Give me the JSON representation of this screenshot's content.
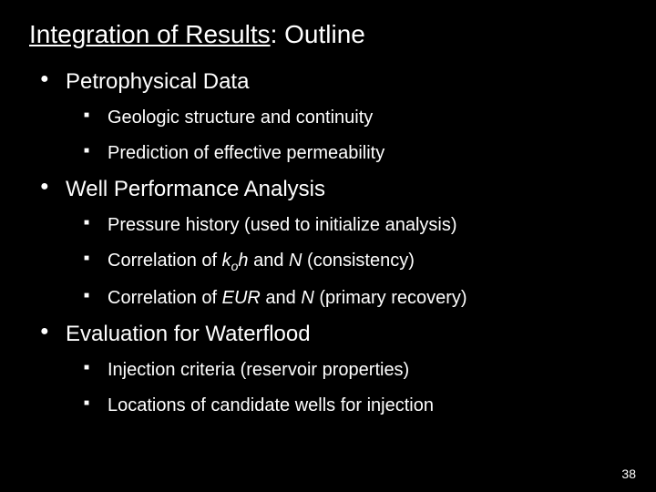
{
  "title_under": "Integration of Results",
  "title_rest": ": Outline",
  "sections": {
    "s0": {
      "heading": "Petrophysical Data",
      "items": {
        "i0": "Geologic structure and continuity",
        "i1": "Prediction of effective permeability"
      }
    },
    "s1": {
      "heading": "Well Performance Analysis",
      "items": {
        "i0": "Pressure history (used to initialize analysis)",
        "i1_a": "Correlation of ",
        "i1_k": "k",
        "i1_o": "o",
        "i1_h": "h",
        "i1_b": " and ",
        "i1_N": "N",
        "i1_c": " (consistency)",
        "i2_a": "Correlation of ",
        "i2_eur": "EUR",
        "i2_b": " and ",
        "i2_N": "N",
        "i2_c": " (primary recovery)"
      }
    },
    "s2": {
      "heading": "Evaluation for Waterflood",
      "items": {
        "i0": "Injection criteria (reservoir properties)",
        "i1": "Locations of candidate wells for injection"
      }
    }
  },
  "page_number": "38"
}
